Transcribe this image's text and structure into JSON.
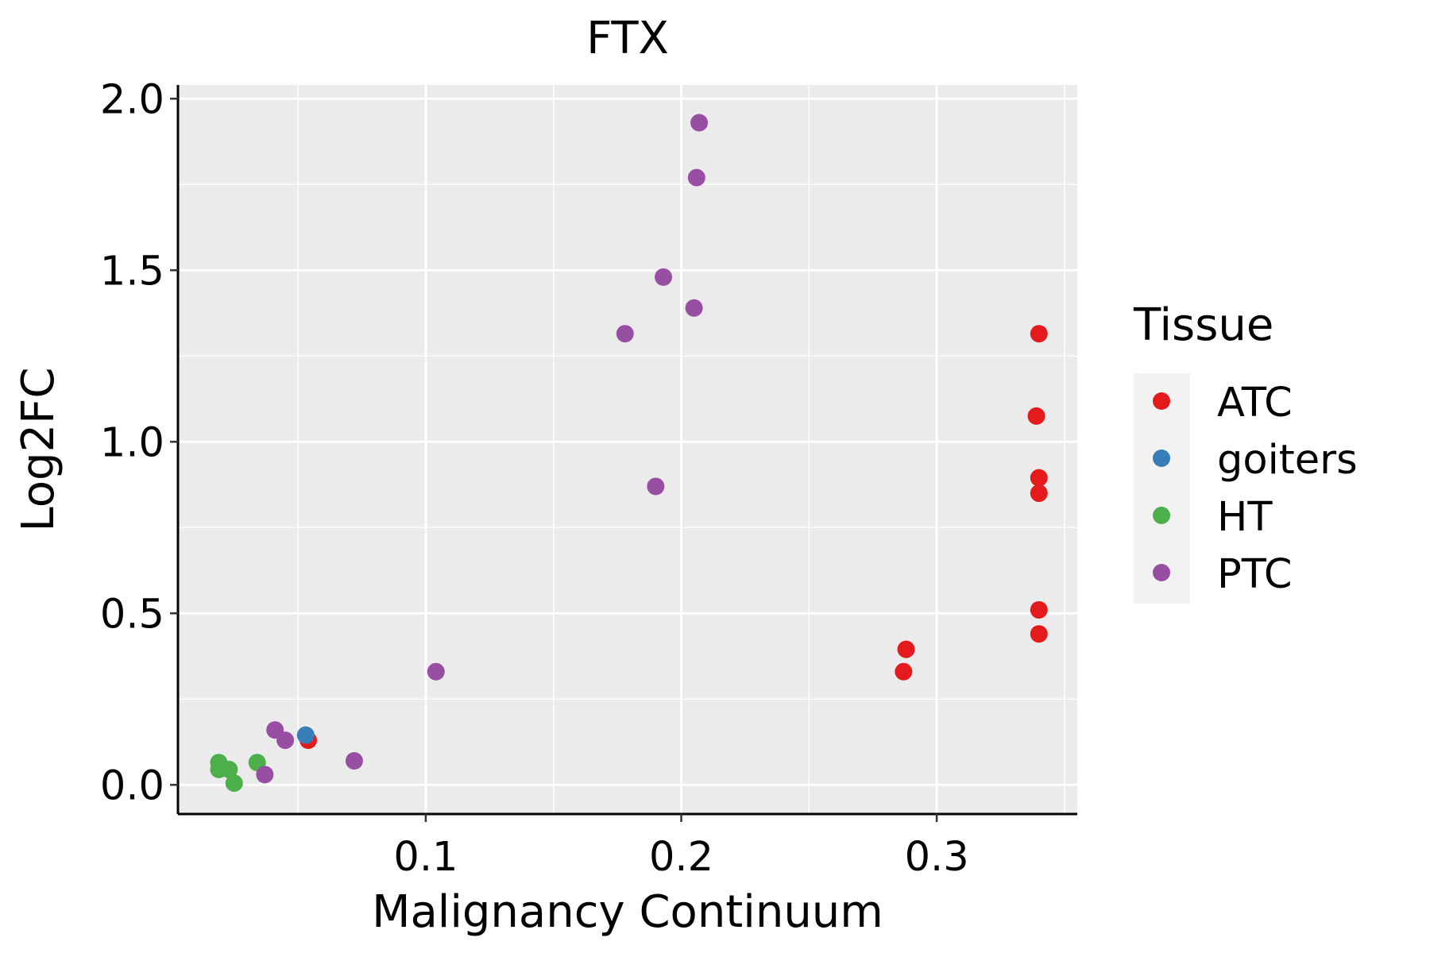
{
  "chart_data": {
    "type": "scatter",
    "title": "FTX",
    "xlabel": "Malignancy Continuum",
    "ylabel": "Log2FC",
    "xlim": [
      0.003,
      0.355
    ],
    "ylim": [
      -0.085,
      2.04
    ],
    "x_ticks": [
      0.1,
      0.2,
      0.3
    ],
    "x_tick_labels": [
      "0.1",
      "0.2",
      "0.3"
    ],
    "y_ticks": [
      0.0,
      0.5,
      1.0,
      1.5,
      2.0
    ],
    "y_tick_labels": [
      "0.0",
      "0.5",
      "1.0",
      "1.5",
      "2.0"
    ],
    "grid": true,
    "legend": {
      "title": "Tissue",
      "position": "right",
      "entries": [
        "ATC",
        "goiters",
        "HT",
        "PTC"
      ]
    },
    "series": [
      {
        "name": "ATC",
        "color": "#E41A1C",
        "points": [
          {
            "x": 0.054,
            "y": 0.13
          },
          {
            "x": 0.287,
            "y": 0.33
          },
          {
            "x": 0.288,
            "y": 0.395
          },
          {
            "x": 0.339,
            "y": 1.075
          },
          {
            "x": 0.34,
            "y": 1.315
          },
          {
            "x": 0.34,
            "y": 0.895
          },
          {
            "x": 0.34,
            "y": 0.85
          },
          {
            "x": 0.34,
            "y": 0.51
          },
          {
            "x": 0.34,
            "y": 0.44
          }
        ]
      },
      {
        "name": "goiters",
        "color": "#377EB8",
        "points": [
          {
            "x": 0.053,
            "y": 0.145
          }
        ]
      },
      {
        "name": "HT",
        "color": "#4DAF4A",
        "points": [
          {
            "x": 0.019,
            "y": 0.065
          },
          {
            "x": 0.019,
            "y": 0.045
          },
          {
            "x": 0.023,
            "y": 0.045
          },
          {
            "x": 0.025,
            "y": 0.005
          },
          {
            "x": 0.034,
            "y": 0.065
          }
        ]
      },
      {
        "name": "PTC",
        "color": "#984EA3",
        "points": [
          {
            "x": 0.207,
            "y": 1.93
          },
          {
            "x": 0.206,
            "y": 1.77
          },
          {
            "x": 0.193,
            "y": 1.48
          },
          {
            "x": 0.205,
            "y": 1.39
          },
          {
            "x": 0.178,
            "y": 1.315
          },
          {
            "x": 0.19,
            "y": 0.87
          },
          {
            "x": 0.104,
            "y": 0.33
          },
          {
            "x": 0.041,
            "y": 0.16
          },
          {
            "x": 0.045,
            "y": 0.13
          },
          {
            "x": 0.072,
            "y": 0.07
          },
          {
            "x": 0.037,
            "y": 0.03
          }
        ]
      }
    ]
  }
}
